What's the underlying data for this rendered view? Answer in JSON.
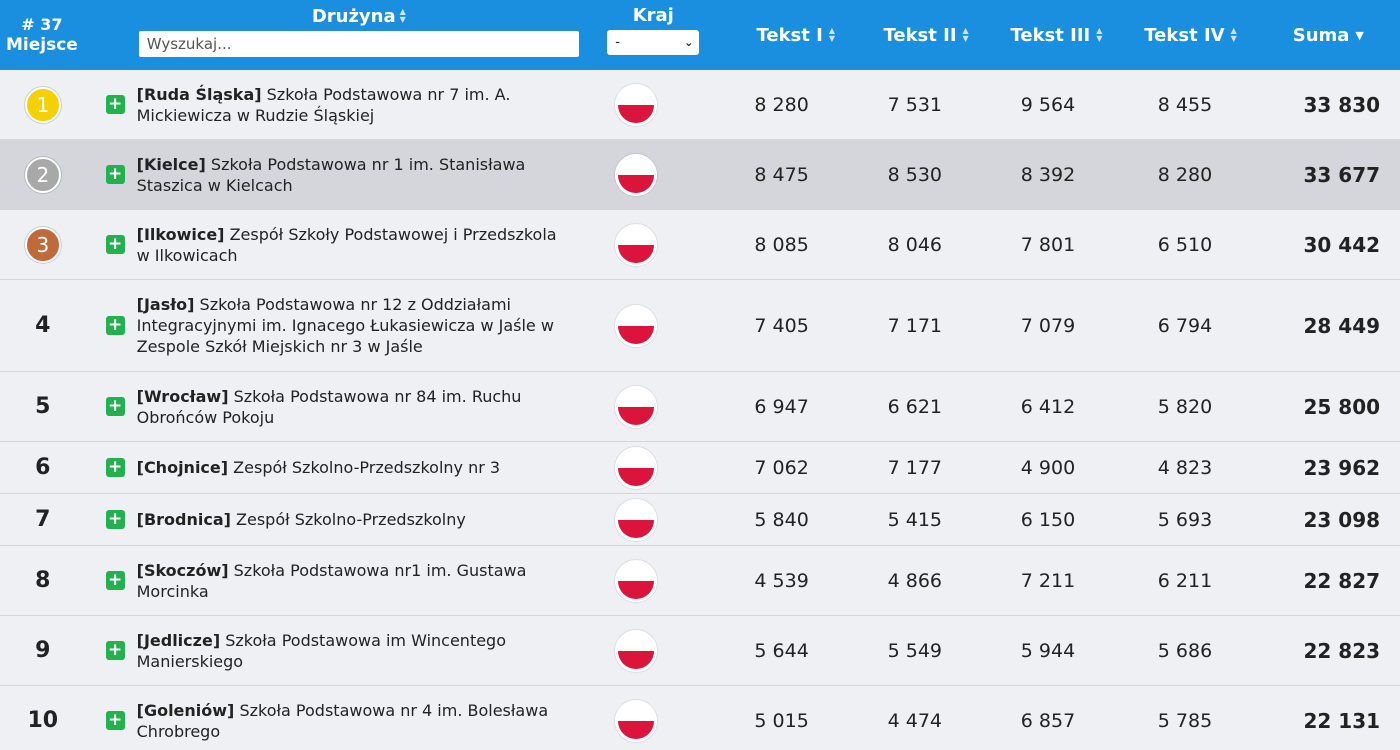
{
  "header": {
    "place_count": "# 37",
    "place_label": "Miejsce",
    "team_label": "Drużyna",
    "search_placeholder": "Wyszukaj...",
    "country_label": "Kraj",
    "country_selected": "-",
    "col1": "Tekst I",
    "col2": "Tekst II",
    "col3": "Tekst III",
    "col4": "Tekst IV",
    "sum": "Suma"
  },
  "colors": {
    "header_bg": "#1a8fe0",
    "gold": "#f5d000",
    "silver": "#a8a8a8",
    "bronze": "#c0693b",
    "plus": "#22b14c",
    "flag_red": "#dc143c"
  },
  "rows": [
    {
      "place": "1",
      "city": "[Ruda Śląska]",
      "name": "Szkoła Podstawowa nr 7 im. A. Mickiewicza w Rudzie Śląskiej",
      "t1": "8 280",
      "t2": "7 531",
      "t3": "9 564",
      "t4": "8 455",
      "sum": "33 830",
      "icon": "poland-flag-icon"
    },
    {
      "place": "2",
      "city": "[Kielce]",
      "name": "Szkoła Podstawowa nr 1 im. Stanisława Staszica w Kielcach",
      "t1": "8 475",
      "t2": "8 530",
      "t3": "8 392",
      "t4": "8 280",
      "sum": "33 677",
      "icon": "poland-flag-icon"
    },
    {
      "place": "3",
      "city": "[Ilkowice]",
      "name": "Zespół Szkoły Podstawowej i Przedszkola w Ilkowicach",
      "t1": "8 085",
      "t2": "8 046",
      "t3": "7 801",
      "t4": "6 510",
      "sum": "30 442",
      "icon": "poland-flag-icon"
    },
    {
      "place": "4",
      "city": "[Jasło]",
      "name": "Szkoła Podstawowa nr 12 z Oddziałami Integracyjnymi im. Ignacego Łukasiewicza w Jaśle w Zespole Szkół Miejskich nr 3 w Jaśle",
      "t1": "7 405",
      "t2": "7 171",
      "t3": "7 079",
      "t4": "6 794",
      "sum": "28 449",
      "icon": "poland-flag-icon"
    },
    {
      "place": "5",
      "city": "[Wrocław]",
      "name": "Szkoła Podstawowa nr 84 im. Ruchu Obrońców Pokoju",
      "t1": "6 947",
      "t2": "6 621",
      "t3": "6 412",
      "t4": "5 820",
      "sum": "25 800",
      "icon": "poland-flag-icon"
    },
    {
      "place": "6",
      "city": "[Chojnice]",
      "name": "Zespół Szkolno-Przedszkolny nr 3",
      "t1": "7 062",
      "t2": "7 177",
      "t3": "4 900",
      "t4": "4 823",
      "sum": "23 962",
      "icon": "poland-flag-icon"
    },
    {
      "place": "7",
      "city": "[Brodnica]",
      "name": "Zespół Szkolno-Przedszkolny",
      "t1": "5 840",
      "t2": "5 415",
      "t3": "6 150",
      "t4": "5 693",
      "sum": "23 098",
      "icon": "poland-flag-icon"
    },
    {
      "place": "8",
      "city": "[Skoczów]",
      "name": "Szkoła Podstawowa nr1 im. Gustawa Morcinka",
      "t1": "4 539",
      "t2": "4 866",
      "t3": "7 211",
      "t4": "6 211",
      "sum": "22 827",
      "icon": "poland-flag-icon"
    },
    {
      "place": "9",
      "city": "[Jedlicze]",
      "name": "Szkoła Podstawowa im Wincentego Manierskiego",
      "t1": "5 644",
      "t2": "5 549",
      "t3": "5 944",
      "t4": "5 686",
      "sum": "22 823",
      "icon": "poland-flag-icon"
    },
    {
      "place": "10",
      "city": "[Goleniów]",
      "name": "Szkoła Podstawowa nr 4 im. Bolesława Chrobrego",
      "t1": "5 015",
      "t2": "4 474",
      "t3": "6 857",
      "t4": "5 785",
      "sum": "22 131",
      "icon": "poland-flag-icon"
    }
  ]
}
